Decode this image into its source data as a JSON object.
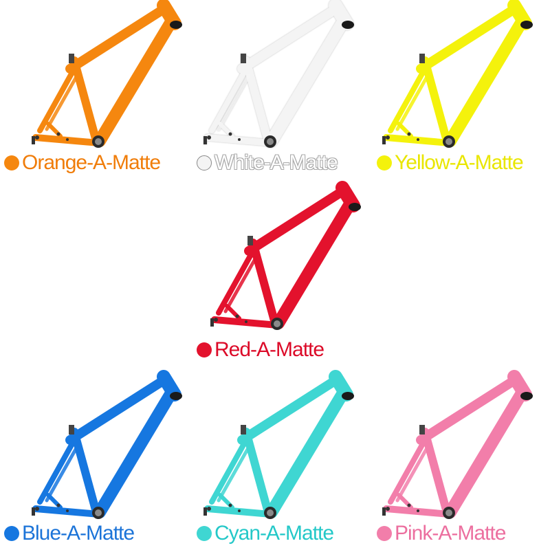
{
  "frames": [
    {
      "label": "Orange-A-Matte",
      "color": "#f5870f",
      "text_color": "#f07d0a"
    },
    {
      "label": "White-A-Matte",
      "color": "#f4f4f4",
      "text_color": "#ffffff"
    },
    {
      "label": "Yellow-A-Matte",
      "color": "#f4f20c",
      "text_color": "#e9e600"
    },
    {
      "label": "Red-A-Matte",
      "color": "#e3122d",
      "text_color": "#dc0a28"
    },
    {
      "label": "Blue-A-Matte",
      "color": "#1677e0",
      "text_color": "#1c74d8"
    },
    {
      "label": "Cyan-A-Matte",
      "color": "#3fd6d2",
      "text_color": "#24c8c8"
    },
    {
      "label": "Pink-A-Matte",
      "color": "#f27eaa",
      "text_color": "#ec6f9f"
    }
  ]
}
